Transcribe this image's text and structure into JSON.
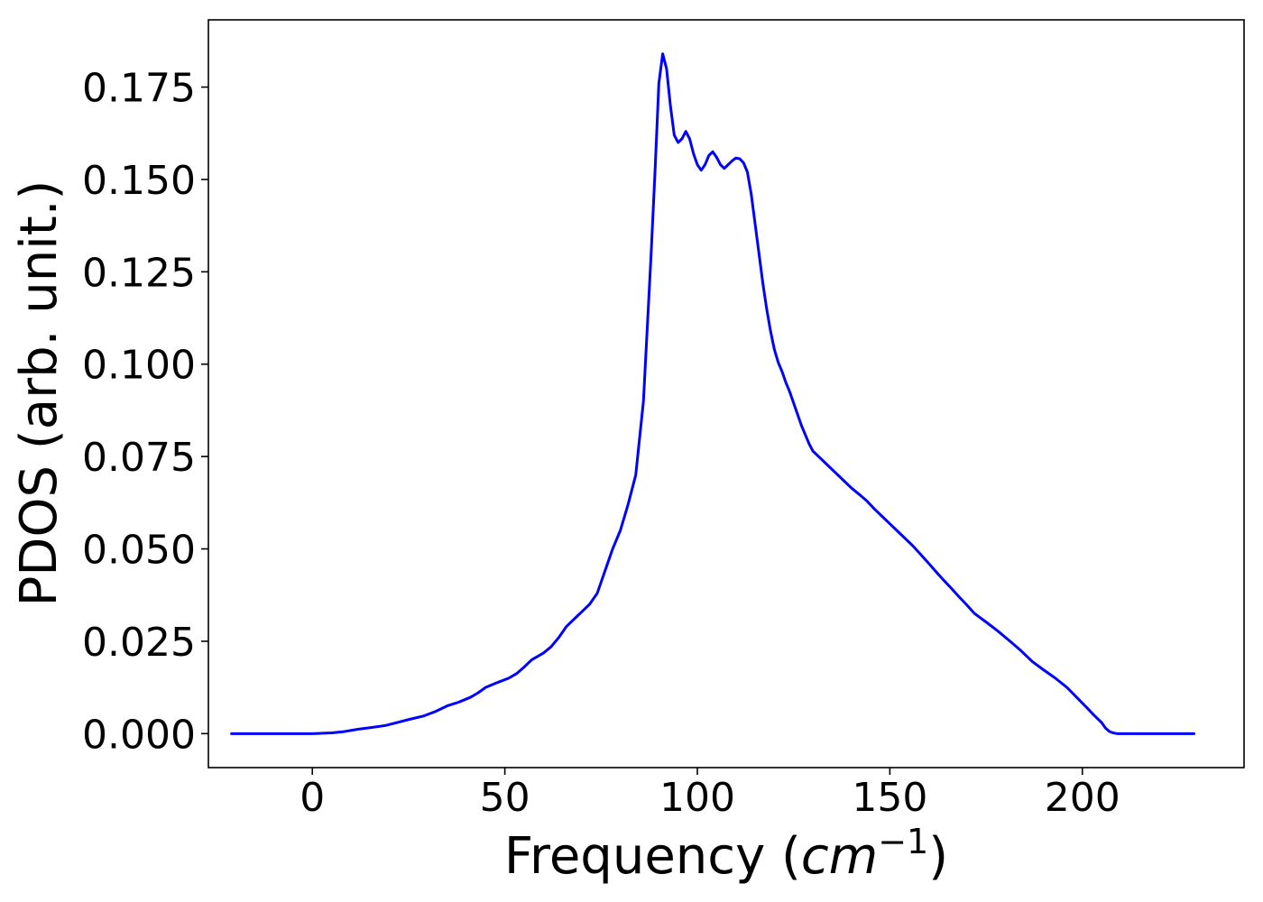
{
  "chart_data": {
    "type": "line",
    "xlabel": "Frequency (",
    "xlabel_math": "cm",
    "xlabel_sup": "−1",
    "xlabel_close": ")",
    "ylabel": "PDOS (arb. unit.)",
    "xlim": [
      -27,
      242
    ],
    "ylim": [
      -0.0092,
      0.1932
    ],
    "xticks": [
      0,
      50,
      100,
      150,
      200
    ],
    "xtick_labels": [
      "0",
      "50",
      "100",
      "150",
      "200"
    ],
    "yticks": [
      0.0,
      0.025,
      0.05,
      0.075,
      0.1,
      0.125,
      0.15,
      0.175
    ],
    "ytick_labels": [
      "0.000",
      "0.025",
      "0.050",
      "0.075",
      "0.100",
      "0.125",
      "0.150",
      "0.175"
    ],
    "grid": false,
    "series": [
      {
        "color": "#0000ff",
        "x": [
          -21,
          -10,
          0,
          5,
          8,
          12,
          15,
          19,
          22,
          25,
          29,
          32,
          35,
          38,
          41,
          43,
          45,
          48,
          51,
          53,
          55,
          57,
          60,
          62,
          64,
          66,
          69,
          70,
          72,
          74,
          76,
          78,
          80,
          82,
          84,
          86,
          87,
          88,
          89,
          90,
          91,
          92,
          93,
          94,
          95,
          96,
          97,
          98,
          99,
          100,
          101,
          102,
          103,
          104,
          105,
          106,
          107,
          108,
          109,
          110,
          111,
          112,
          113,
          114,
          115,
          116,
          117,
          118,
          119,
          120,
          121,
          122,
          123,
          124,
          125,
          126,
          127,
          128,
          129,
          130,
          132,
          134,
          136,
          138,
          140,
          142,
          144,
          146,
          148,
          150,
          152,
          154,
          156,
          158,
          160,
          162,
          164,
          166,
          168,
          170,
          172,
          175,
          178,
          181,
          184,
          187,
          190,
          193,
          196,
          199,
          201,
          203,
          205,
          206,
          207,
          208,
          209,
          210,
          211,
          212,
          214,
          217,
          220,
          229
        ],
        "y": [
          0.0,
          0.0,
          0.0,
          0.0002,
          0.0005,
          0.0012,
          0.0016,
          0.0022,
          0.003,
          0.0038,
          0.0048,
          0.006,
          0.0075,
          0.0085,
          0.0098,
          0.011,
          0.0125,
          0.0138,
          0.015,
          0.0162,
          0.018,
          0.02,
          0.0218,
          0.0235,
          0.026,
          0.029,
          0.032,
          0.033,
          0.035,
          0.038,
          0.044,
          0.05,
          0.055,
          0.062,
          0.07,
          0.09,
          0.11,
          0.13,
          0.152,
          0.176,
          0.184,
          0.18,
          0.17,
          0.162,
          0.16,
          0.161,
          0.163,
          0.161,
          0.157,
          0.154,
          0.1525,
          0.154,
          0.1565,
          0.1575,
          0.156,
          0.154,
          0.153,
          0.154,
          0.155,
          0.1558,
          0.1556,
          0.1545,
          0.152,
          0.146,
          0.138,
          0.13,
          0.122,
          0.115,
          0.109,
          0.104,
          0.1005,
          0.098,
          0.095,
          0.0925,
          0.0895,
          0.0865,
          0.0835,
          0.081,
          0.0785,
          0.0765,
          0.0745,
          0.0725,
          0.0705,
          0.0685,
          0.0665,
          0.0648,
          0.063,
          0.0608,
          0.0588,
          0.0568,
          0.0548,
          0.0528,
          0.0508,
          0.0485,
          0.0462,
          0.0438,
          0.0415,
          0.0393,
          0.037,
          0.0348,
          0.0325,
          0.0302,
          0.0278,
          0.0252,
          0.0225,
          0.0195,
          0.0172,
          0.015,
          0.0125,
          0.0093,
          0.0072,
          0.005,
          0.003,
          0.0015,
          0.0006,
          0.0002,
          0.0,
          0.0,
          0.0,
          0.0,
          0.0,
          0.0,
          0.0,
          0.0
        ]
      }
    ]
  }
}
